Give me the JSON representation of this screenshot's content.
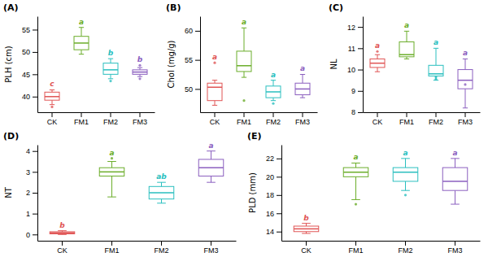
{
  "chart_data": [
    {
      "type": "box",
      "title": "(A)",
      "ylabel": "PLH (cm)",
      "categories": [
        "CK",
        "FM1",
        "FM2",
        "FM3"
      ],
      "colors": [
        "#E05555",
        "#6BAD2A",
        "#2ABFBF",
        "#8B5FBF"
      ],
      "annotations": [
        "c",
        "a",
        "b",
        "b"
      ],
      "ylim": [
        36.5,
        58.0
      ],
      "yticks": [
        40,
        45,
        50,
        55
      ],
      "grid": false,
      "boxes": [
        {
          "med": 40.0,
          "q1": 39.2,
          "q3": 41.0,
          "whislo": 38.2,
          "whishi": 41.5,
          "fliers": [
            37.7
          ]
        },
        {
          "med": 52.0,
          "q1": 50.5,
          "q3": 53.5,
          "whislo": 49.5,
          "whishi": 55.5,
          "fliers": []
        },
        {
          "med": 46.0,
          "q1": 45.0,
          "q3": 47.5,
          "whislo": 44.0,
          "whishi": 48.5,
          "fliers": [
            43.5
          ]
        },
        {
          "med": 45.5,
          "q1": 45.0,
          "q3": 46.0,
          "whislo": 44.5,
          "whishi": 46.5,
          "fliers": [
            44.0,
            47.0
          ]
        }
      ]
    },
    {
      "type": "box",
      "title": "(B)",
      "ylabel": "Chol (mg/g)",
      "categories": [
        "CK",
        "FM1",
        "FM2",
        "FM3"
      ],
      "colors": [
        "#E05555",
        "#6BAD2A",
        "#2ABFBF",
        "#8B5FBF"
      ],
      "annotations": [
        "a",
        "a",
        "a",
        "a"
      ],
      "ylim": [
        46.0,
        62.5
      ],
      "yticks": [
        50,
        55,
        60
      ],
      "grid": false,
      "boxes": [
        {
          "med": 50.3,
          "q1": 48.0,
          "q3": 51.0,
          "whislo": 47.2,
          "whishi": 51.5,
          "fliers": [
            54.5
          ]
        },
        {
          "med": 54.0,
          "q1": 53.0,
          "q3": 56.5,
          "whislo": 52.0,
          "whishi": 60.5,
          "fliers": [
            48.0
          ]
        },
        {
          "med": 49.5,
          "q1": 48.5,
          "q3": 50.5,
          "whislo": 48.0,
          "whishi": 51.5,
          "fliers": [
            47.5
          ]
        },
        {
          "med": 50.0,
          "q1": 49.0,
          "q3": 51.0,
          "whislo": 48.5,
          "whishi": 52.5,
          "fliers": []
        }
      ]
    },
    {
      "type": "box",
      "title": "(C)",
      "ylabel": "NL",
      "categories": [
        "CK",
        "FM1",
        "FM2",
        "FM3"
      ],
      "colors": [
        "#E05555",
        "#6BAD2A",
        "#2ABFBF",
        "#8B5FBF"
      ],
      "annotations": [
        "a",
        "a",
        "a",
        "a"
      ],
      "ylim": [
        8.0,
        12.5
      ],
      "yticks": [
        8,
        9,
        10,
        11,
        12
      ],
      "grid": false,
      "boxes": [
        {
          "med": 10.3,
          "q1": 10.1,
          "q3": 10.5,
          "whislo": 9.9,
          "whishi": 10.7,
          "fliers": [
            10.85
          ]
        },
        {
          "med": 10.7,
          "q1": 10.6,
          "q3": 11.3,
          "whislo": 10.5,
          "whishi": 11.8,
          "fliers": []
        },
        {
          "med": 9.8,
          "q1": 9.7,
          "q3": 10.2,
          "whislo": 9.5,
          "whishi": 11.0,
          "fliers": [
            9.55,
            9.65
          ]
        },
        {
          "med": 9.5,
          "q1": 9.1,
          "q3": 10.0,
          "whislo": 8.2,
          "whishi": 10.5,
          "fliers": [
            9.3
          ]
        }
      ]
    },
    {
      "type": "box",
      "title": "(D)",
      "ylabel": "NT",
      "categories": [
        "CK",
        "FM1",
        "FM2",
        "FM3"
      ],
      "colors": [
        "#E05555",
        "#6BAD2A",
        "#2ABFBF",
        "#8B5FBF"
      ],
      "annotations": [
        "b",
        "a",
        "ab",
        "a"
      ],
      "ylim": [
        -0.3,
        4.3
      ],
      "yticks": [
        0,
        1,
        2,
        3,
        4
      ],
      "grid": false,
      "boxes": [
        {
          "med": 0.08,
          "q1": 0.03,
          "q3": 0.13,
          "whislo": 0.0,
          "whishi": 0.18,
          "fliers": []
        },
        {
          "med": 3.0,
          "q1": 2.8,
          "q3": 3.2,
          "whislo": 1.8,
          "whishi": 3.5,
          "fliers": [
            3.65
          ]
        },
        {
          "med": 2.0,
          "q1": 1.7,
          "q3": 2.3,
          "whislo": 1.5,
          "whishi": 2.5,
          "fliers": []
        },
        {
          "med": 3.2,
          "q1": 2.8,
          "q3": 3.6,
          "whislo": 2.5,
          "whishi": 4.0,
          "fliers": []
        }
      ]
    },
    {
      "type": "box",
      "title": "(E)",
      "ylabel": "PLD (mm)",
      "categories": [
        "CK",
        "FM1",
        "FM2",
        "FM3"
      ],
      "colors": [
        "#E05555",
        "#6BAD2A",
        "#2ABFBF",
        "#8B5FBF"
      ],
      "annotations": [
        "b",
        "a",
        "a",
        "a"
      ],
      "ylim": [
        13.0,
        23.5
      ],
      "yticks": [
        14,
        16,
        18,
        20,
        22
      ],
      "grid": false,
      "boxes": [
        {
          "med": 14.3,
          "q1": 14.0,
          "q3": 14.6,
          "whislo": 13.8,
          "whishi": 14.9,
          "fliers": []
        },
        {
          "med": 20.5,
          "q1": 20.0,
          "q3": 21.0,
          "whislo": 17.5,
          "whishi": 21.5,
          "fliers": [
            17.0
          ]
        },
        {
          "med": 20.5,
          "q1": 19.5,
          "q3": 21.0,
          "whislo": 18.5,
          "whishi": 22.0,
          "fliers": [
            18.0
          ]
        },
        {
          "med": 19.5,
          "q1": 18.5,
          "q3": 21.0,
          "whislo": 17.0,
          "whishi": 22.0,
          "fliers": []
        }
      ]
    }
  ]
}
